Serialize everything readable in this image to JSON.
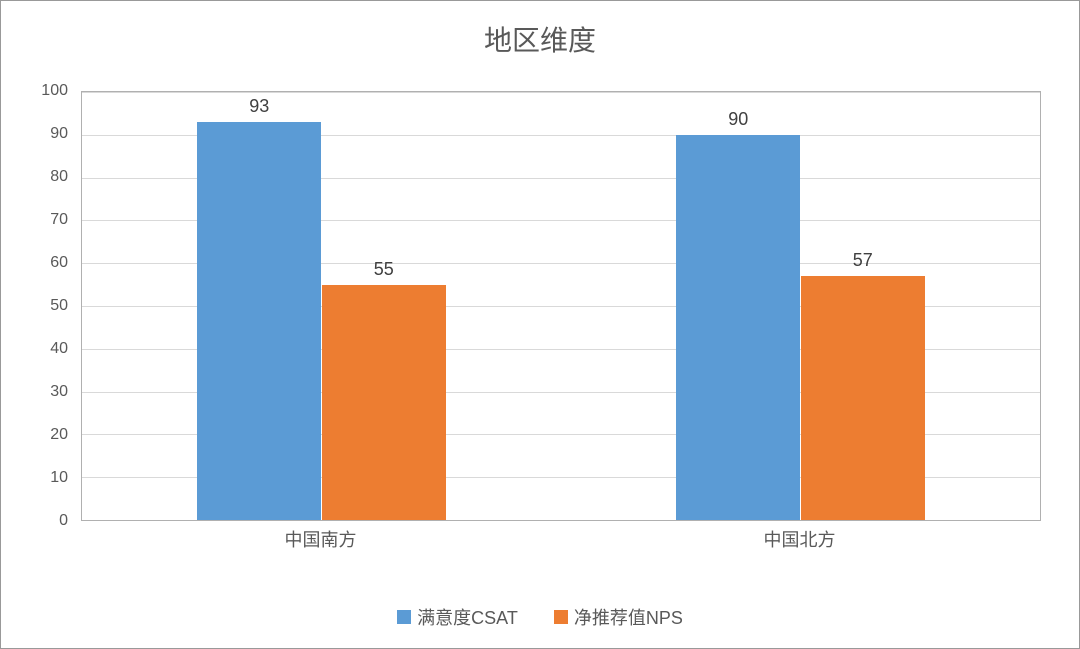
{
  "chart": {
    "type": "bar",
    "title": "地区维度",
    "title_fontsize": 28,
    "title_color": "#595959",
    "background_color": "#ffffff",
    "plot_background_color": "#ffffff",
    "border_color": "#999999",
    "grid_color": "#d9d9d9",
    "axis_line_color": "#b0b0b0",
    "label_fontsize": 18,
    "label_color": "#595959",
    "ylim": [
      0,
      100
    ],
    "ytick_step": 10,
    "yticks": [
      0,
      10,
      20,
      30,
      40,
      50,
      60,
      70,
      80,
      90,
      100
    ],
    "categories": [
      "中国南方",
      "中国北方"
    ],
    "series": [
      {
        "name": "满意度CSAT",
        "color": "#5b9bd5",
        "values": [
          93,
          90
        ]
      },
      {
        "name": "净推荐值NPS",
        "color": "#ed7d31",
        "values": [
          55,
          57
        ]
      }
    ],
    "bar_width_ratio": 0.13,
    "bar_gap_ratio": 0.0,
    "group_gap_ratio": 0.48,
    "data_label_color": "#404040",
    "data_label_fontsize": 18
  }
}
